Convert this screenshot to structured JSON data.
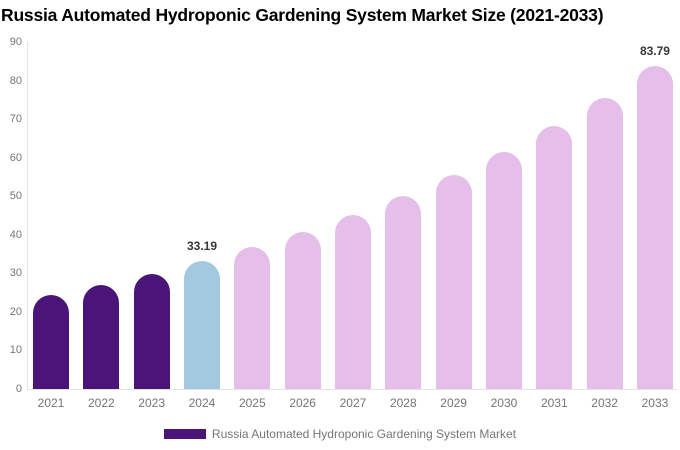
{
  "title": "Russia Automated Hydroponic Gardening System Market Size (2021-2033)",
  "colors": {
    "historical": "#4a1478",
    "current": "#a2c9e0",
    "forecast": "#e5bee9",
    "axis_line": "#e4e4e4",
    "tick_text": "#757575",
    "value_label_text": "#373737"
  },
  "legend": {
    "label": "Russia Automated Hydroponic Gardening System Market",
    "swatch_color": "#4a1478"
  },
  "chart_data": {
    "type": "bar",
    "title": "Russia Automated Hydroponic Gardening System Market Size (2021-2033)",
    "xlabel": "",
    "ylabel": "",
    "categories": [
      "2021",
      "2022",
      "2023",
      "2024",
      "2025",
      "2026",
      "2027",
      "2028",
      "2029",
      "2030",
      "2031",
      "2032",
      "2033"
    ],
    "values": [
      24.4,
      27.0,
      29.9,
      33.19,
      36.8,
      40.8,
      45.2,
      50.1,
      55.5,
      61.5,
      68.2,
      75.6,
      83.79
    ],
    "segments": [
      "historical",
      "historical",
      "historical",
      "current",
      "forecast",
      "forecast",
      "forecast",
      "forecast",
      "forecast",
      "forecast",
      "forecast",
      "forecast",
      "forecast"
    ],
    "data_labels": {
      "2024": "33.19",
      "2033": "83.79"
    },
    "ylim": [
      0,
      90
    ],
    "yticks": [
      0,
      10,
      20,
      30,
      40,
      50,
      60,
      70,
      80,
      90
    ],
    "grid": false,
    "legend_position": "bottom",
    "legend_entries": [
      "Russia Automated Hydroponic Gardening System Market"
    ]
  }
}
